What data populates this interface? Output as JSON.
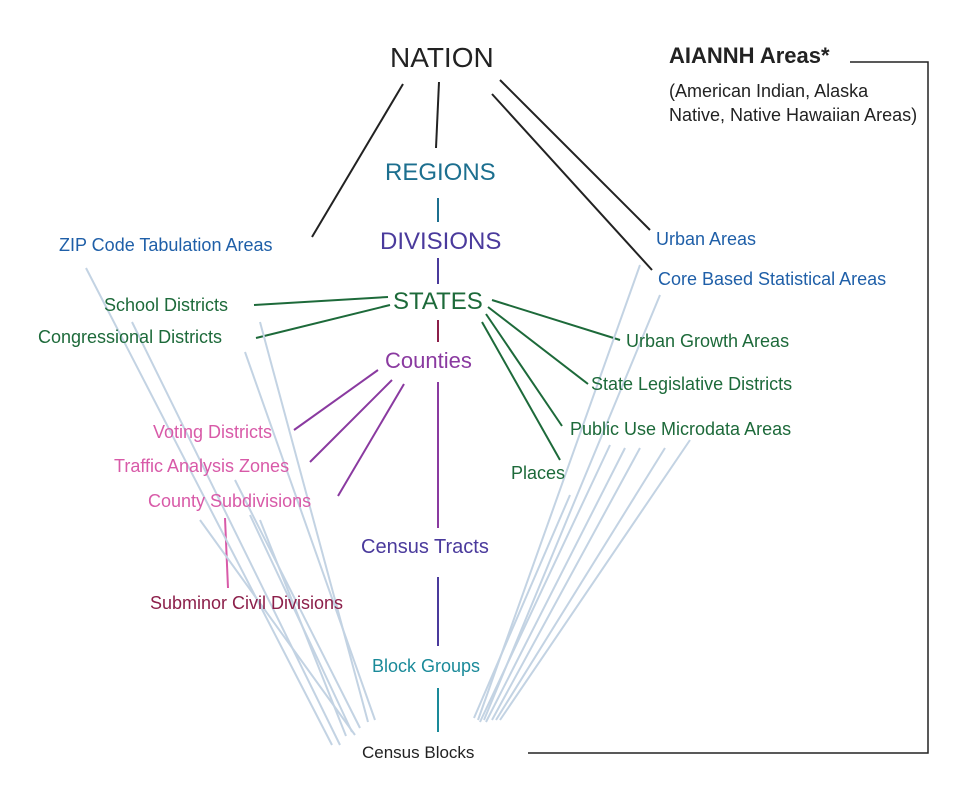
{
  "nodes": {
    "nation": "NATION",
    "regions": "REGIONS",
    "divisions": "DIVISIONS",
    "states": "STATES",
    "counties": "Counties",
    "census_tracts": "Census Tracts",
    "block_groups": "Block Groups",
    "census_blocks": "Census Blocks",
    "zcta": "ZIP Code Tabulation Areas",
    "school_districts": "School Districts",
    "congressional_districts": "Congressional Districts",
    "voting_districts": "Voting Districts",
    "traffic_analysis_zones": "Traffic Analysis Zones",
    "county_subdivisions": "County Subdivisions",
    "subminor_civil_divisions": "Subminor Civil Divisions",
    "urban_areas": "Urban Areas",
    "cbsa": "Core Based Statistical Areas",
    "urban_growth_areas": "Urban Growth Areas",
    "state_legislative_districts": "State Legislative Districts",
    "puma": "Public Use Microdata Areas",
    "places": "Places",
    "aiannh_title": "AIANNH Areas*",
    "aiannh_note": "(American Indian, Alaska Native, Native Hawaiian Areas)"
  },
  "colors": {
    "blue": "#1f5fa8",
    "teal": "#1c6f8f",
    "purple": "#4a3a9c",
    "green": "#1d6a3a",
    "magenta": "#8a3aa0",
    "pink": "#d85aa8",
    "maroon": "#8c1f4a",
    "cyan": "#1a8a99",
    "connector_light": "#c3d3e3",
    "connector_dark": "#222222"
  }
}
